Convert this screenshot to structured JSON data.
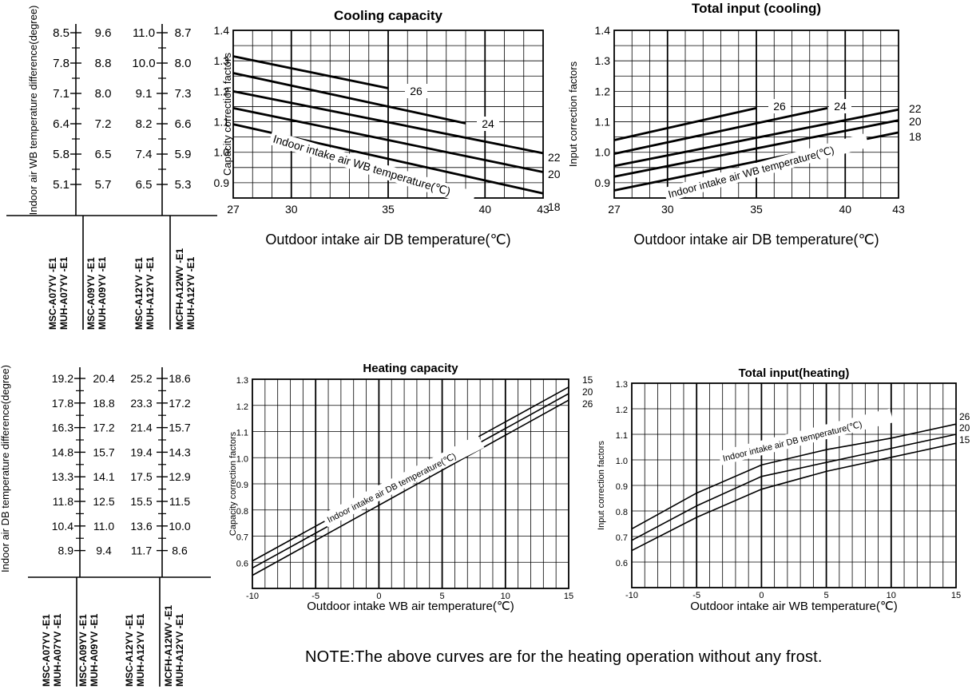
{
  "chart_data": [
    {
      "type": "table",
      "ylabel": "Indoor air WB temperature difference(degree)",
      "columns": [
        {
          "values": [
            "8.5",
            "7.8",
            "7.1",
            "6.4",
            "5.8",
            "5.1"
          ],
          "model": "MSC-A07YV -E1 MUH-A07YV -E1"
        },
        {
          "values": [
            "9.6",
            "8.8",
            "8.0",
            "7.2",
            "6.5",
            "5.7"
          ],
          "model": "MSC-A09YV -E1 MUH-A09YV -E1"
        },
        {
          "values": [
            "11.0",
            "10.0",
            "9.1",
            "8.2",
            "7.4",
            "6.5"
          ],
          "model": "MSC-A12YV -E1 MUH-A12YV -E1"
        },
        {
          "values": [
            "8.7",
            "8.0",
            "7.3",
            "6.6",
            "5.9",
            "5.3"
          ],
          "model": "MCFH-A12WV -E1 MUH-A12YV -E1"
        }
      ]
    },
    {
      "type": "line",
      "title": "Cooling capacity",
      "xlabel": "Outdoor intake air DB temperature(℃)",
      "ylabel": "Capacity correction factors",
      "xlim": [
        27,
        43
      ],
      "ylim": [
        0.85,
        1.4
      ],
      "xticks": [
        "27",
        "30",
        "35",
        "40",
        "43"
      ],
      "yticks": [
        "0.9",
        "1.0",
        "1.1",
        "1.2",
        "1.3",
        "1.4"
      ],
      "annotation": "Indoor intake air WB temperature(℃)",
      "series": [
        {
          "name": "26",
          "x": [
            27,
            35
          ],
          "y": [
            1.315,
            1.21
          ]
        },
        {
          "name": "24",
          "x": [
            27,
            39
          ],
          "y": [
            1.26,
            1.095
          ]
        },
        {
          "name": "22",
          "x": [
            27,
            43
          ],
          "y": [
            1.2,
            0.997
          ]
        },
        {
          "name": "20",
          "x": [
            27,
            43
          ],
          "y": [
            1.145,
            0.935
          ]
        },
        {
          "name": "18",
          "x": [
            27,
            43
          ],
          "y": [
            1.092,
            0.865
          ]
        }
      ]
    },
    {
      "type": "line",
      "title": "Total input (cooling)",
      "xlabel": "Outdoor intake air DB temperature(℃)",
      "ylabel": "Input correction factors",
      "xlim": [
        27,
        43
      ],
      "ylim": [
        0.85,
        1.4
      ],
      "xticks": [
        "27",
        "30",
        "35",
        "40",
        "43"
      ],
      "yticks": [
        "0.9",
        "1.0",
        "1.1",
        "1.2",
        "1.3",
        "1.4"
      ],
      "annotation": "Indoor intake air WB temperature(℃)",
      "series": [
        {
          "name": "26",
          "x": [
            27,
            35
          ],
          "y": [
            1.04,
            1.145
          ]
        },
        {
          "name": "24",
          "x": [
            27,
            39
          ],
          "y": [
            0.995,
            1.145
          ]
        },
        {
          "name": "22",
          "x": [
            27,
            43
          ],
          "y": [
            0.955,
            1.14
          ]
        },
        {
          "name": "20",
          "x": [
            27,
            43
          ],
          "y": [
            0.92,
            1.105
          ]
        },
        {
          "name": "18",
          "x": [
            27,
            43
          ],
          "y": [
            0.875,
            1.065
          ]
        }
      ]
    },
    {
      "type": "table",
      "ylabel": "Indoor air DB temperature difference(degree)",
      "columns": [
        {
          "values": [
            "19.2",
            "17.8",
            "16.3",
            "14.8",
            "13.3",
            "11.8",
            "10.4",
            "8.9"
          ],
          "model": "MSC-A07YV -E1 MUH-A07YV -E1"
        },
        {
          "values": [
            "20.4",
            "18.8",
            "17.2",
            "15.7",
            "14.1",
            "12.5",
            "11.0",
            "9.4"
          ],
          "model": "MSC-A09YV -E1 MUH-A09YV -E1"
        },
        {
          "values": [
            "25.2",
            "23.3",
            "21.4",
            "19.4",
            "17.5",
            "15.5",
            "13.6",
            "11.7"
          ],
          "model": "MSC-A12YV -E1 MUH-A12YV -E1"
        },
        {
          "values": [
            "18.6",
            "17.2",
            "15.7",
            "14.3",
            "12.9",
            "11.5",
            "10.0",
            "8.6"
          ],
          "model": "MCFH-A12WV -E1 MUH-A12YV -E1"
        }
      ]
    },
    {
      "type": "line",
      "title": "Heating capacity",
      "xlabel": "Outdoor intake WB air temperature(℃)",
      "ylabel": "Capacity correction factors",
      "xlim": [
        -10,
        15
      ],
      "ylim": [
        0.5,
        1.3
      ],
      "xticks": [
        "-10",
        "-5",
        "0",
        "5",
        "10",
        "15"
      ],
      "yticks": [
        "0.6",
        "0.7",
        "0.8",
        "0.9",
        "1.0",
        "1.1",
        "1.2",
        "1.3"
      ],
      "annotation": "Indoor intake air DB temperature(℃)",
      "series": [
        {
          "name": "15",
          "x": [
            -10,
            15
          ],
          "y": [
            0.605,
            1.27
          ]
        },
        {
          "name": "20",
          "x": [
            -10,
            15
          ],
          "y": [
            0.578,
            1.245
          ]
        },
        {
          "name": "26",
          "x": [
            -10,
            15
          ],
          "y": [
            0.55,
            1.22
          ]
        }
      ]
    },
    {
      "type": "line",
      "title": "Total input(heating)",
      "xlabel": "Outdoor intake air WB temperature(℃)",
      "ylabel": "Input correction factors",
      "xlim": [
        -10,
        15
      ],
      "ylim": [
        0.5,
        1.3
      ],
      "xticks": [
        "-10",
        "-5",
        "0",
        "5",
        "10",
        "15"
      ],
      "yticks": [
        "0.6",
        "0.7",
        "0.8",
        "0.9",
        "1.0",
        "1.1",
        "1.2",
        "1.3"
      ],
      "annotation": "Indoor intake air DB temperature(℃)",
      "series": [
        {
          "name": "26",
          "x": [
            -10,
            -5,
            0,
            5,
            10,
            15
          ],
          "y": [
            0.73,
            0.87,
            0.98,
            1.04,
            1.085,
            1.14
          ]
        },
        {
          "name": "20",
          "x": [
            -10,
            -5,
            0,
            5,
            10,
            15
          ],
          "y": [
            0.685,
            0.82,
            0.935,
            0.99,
            1.045,
            1.1
          ]
        },
        {
          "name": "15",
          "x": [
            -10,
            -5,
            0,
            5,
            10,
            15
          ],
          "y": [
            0.645,
            0.775,
            0.885,
            0.955,
            1.01,
            1.065
          ]
        }
      ]
    }
  ],
  "note": "NOTE:The above curves are for the heating operation without any frost."
}
